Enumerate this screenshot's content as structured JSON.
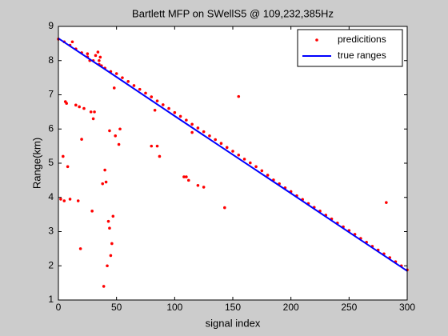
{
  "chart_data": {
    "type": "scatter",
    "title": "Bartlett MFP on SWellS5 @ 109,232,385Hz",
    "x_label": "signal index",
    "y_label": "Range(km)",
    "xlim": [
      0,
      300
    ],
    "xticks": [
      0,
      50,
      100,
      150,
      200,
      250,
      300
    ],
    "ylim": [
      1,
      9
    ],
    "yticks": [
      1,
      2,
      3,
      4,
      5,
      6,
      7,
      8,
      9
    ],
    "legend": "northeast",
    "series": [
      {
        "name": "predicitions",
        "color": "#ff0000",
        "style": "marker",
        "x": [
          0,
          5,
          10,
          15,
          20,
          25,
          30,
          35,
          40,
          45,
          50,
          55,
          60,
          65,
          70,
          75,
          80,
          85,
          90,
          95,
          100,
          105,
          110,
          115,
          120,
          125,
          130,
          135,
          140,
          145,
          150,
          155,
          160,
          165,
          170,
          175,
          180,
          185,
          190,
          195,
          200,
          205,
          210,
          215,
          220,
          225,
          230,
          235,
          240,
          245,
          250,
          255,
          260,
          265,
          270,
          275,
          280,
          285,
          290,
          295,
          300,
          2,
          4,
          5,
          6,
          7,
          8,
          10,
          12,
          15,
          17,
          18,
          19,
          20,
          22,
          25,
          27,
          28,
          29,
          30,
          31,
          32,
          34,
          35,
          36,
          37,
          38,
          39,
          40,
          41,
          42,
          43,
          44,
          44,
          45,
          46,
          47,
          48,
          49,
          52,
          53,
          80,
          83,
          85,
          87,
          108,
          110,
          112,
          115,
          120,
          125,
          143,
          155,
          282
        ],
        "values": [
          8.63,
          8.55,
          8.45,
          8.34,
          8.23,
          8.11,
          8.0,
          7.89,
          7.78,
          7.68,
          7.62,
          7.5,
          7.39,
          7.27,
          7.16,
          7.05,
          6.94,
          6.82,
          6.71,
          6.6,
          6.48,
          6.37,
          6.26,
          6.14,
          6.03,
          5.92,
          5.8,
          5.69,
          5.58,
          5.46,
          5.35,
          5.24,
          5.12,
          5.01,
          4.9,
          4.78,
          4.65,
          4.51,
          4.4,
          4.28,
          4.17,
          4.05,
          3.94,
          3.82,
          3.71,
          3.6,
          3.48,
          3.37,
          3.25,
          3.14,
          3.03,
          2.92,
          2.8,
          2.69,
          2.57,
          2.46,
          2.35,
          2.24,
          2.12,
          2.0,
          1.88,
          3.95,
          5.2,
          3.9,
          6.8,
          6.75,
          4.9,
          3.95,
          8.55,
          6.7,
          3.9,
          6.65,
          2.5,
          5.7,
          6.6,
          8.2,
          8.0,
          6.5,
          3.6,
          6.3,
          6.5,
          8.15,
          8.25,
          8.0,
          8.1,
          7.85,
          4.4,
          1.4,
          4.8,
          4.45,
          2.0,
          3.3,
          5.95,
          3.1,
          2.3,
          2.65,
          3.45,
          7.2,
          5.8,
          5.55,
          6.0,
          5.5,
          6.55,
          5.5,
          5.2,
          4.6,
          4.6,
          4.5,
          5.9,
          4.35,
          4.3,
          3.7,
          6.95,
          3.85
        ]
      },
      {
        "name": "true ranges",
        "color": "#0000ff",
        "style": "line",
        "x": [
          0,
          50,
          100,
          150,
          200,
          250,
          300
        ],
        "values": [
          8.65,
          7.52,
          6.38,
          5.25,
          4.12,
          2.98,
          1.85
        ]
      }
    ]
  }
}
